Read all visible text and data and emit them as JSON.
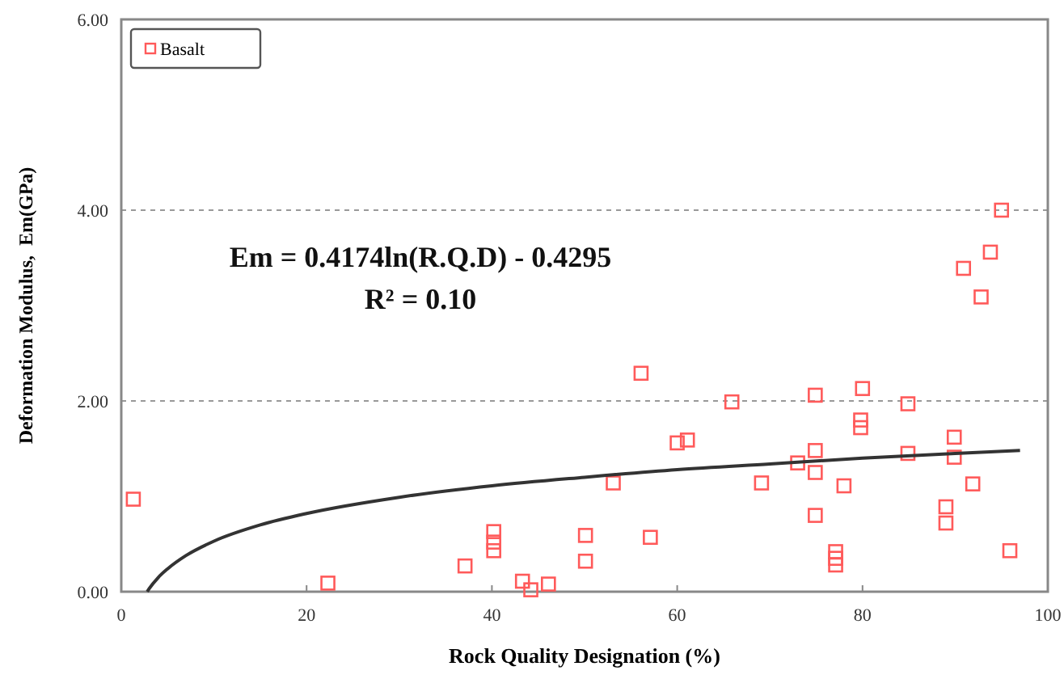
{
  "chart_data": {
    "type": "scatter",
    "xlabel": "Rock Quality Designation (%)",
    "ylabel": "Deformation Modulus,  Em(GPa)",
    "xlim": [
      0,
      100
    ],
    "xticks": [
      0,
      20,
      40,
      60,
      80,
      100
    ],
    "ylim": [
      0,
      6
    ],
    "yticks": [
      {
        "value": 0,
        "label": "0.00"
      },
      {
        "value": 2,
        "label": "2.00"
      },
      {
        "value": 4,
        "label": "4.00"
      },
      {
        "value": 6,
        "label": "6.00"
      }
    ],
    "grid": "y",
    "legend": "top left",
    "annotations": [
      "Em = 0.4174ln(R.Q.D) - 0.4295",
      "R² = 0.10"
    ],
    "series": [
      {
        "name": "Basalt",
        "color": "#ff5a5a",
        "marker": "square",
        "x": [
          1.3,
          22.3,
          37.1,
          40.2,
          40.2,
          40.2,
          43.3,
          44.2,
          46.1,
          50.1,
          50.1,
          53.1,
          56.1,
          57.1,
          60.0,
          61.1,
          65.9,
          69.1,
          73.0,
          74.9,
          74.9,
          74.9,
          74.9,
          77.1,
          77.1,
          77.1,
          78.0,
          80.0,
          79.8,
          79.8,
          84.9,
          84.9,
          89.9,
          89.9,
          89.0,
          89.0,
          91.9,
          90.9,
          92.8,
          93.8,
          95.0,
          95.9
        ],
        "values": [
          0.97,
          0.09,
          0.27,
          0.63,
          0.52,
          0.43,
          0.11,
          0.02,
          0.08,
          0.59,
          0.32,
          1.14,
          2.29,
          0.57,
          1.56,
          1.59,
          1.99,
          1.14,
          1.35,
          2.06,
          1.48,
          1.25,
          0.8,
          0.42,
          0.35,
          0.28,
          1.11,
          2.13,
          1.8,
          1.72,
          1.97,
          1.45,
          1.62,
          1.41,
          0.89,
          0.72,
          1.13,
          3.39,
          3.09,
          3.56,
          4.0,
          0.43
        ]
      },
      {
        "type": "line",
        "color": "#333333",
        "marker": "none",
        "x": [
          2.8,
          3,
          4,
          5,
          7,
          10,
          15,
          20,
          30,
          40,
          50,
          60,
          70,
          80,
          90,
          97
        ],
        "values": [
          0.0,
          0.03,
          0.15,
          0.24,
          0.38,
          0.53,
          0.7,
          0.82,
          0.99,
          1.11,
          1.2,
          1.28,
          1.34,
          1.4,
          1.45,
          1.48
        ]
      }
    ]
  }
}
